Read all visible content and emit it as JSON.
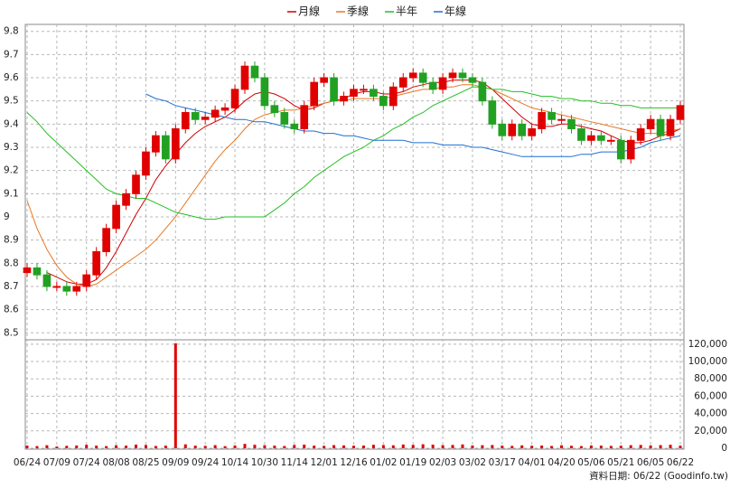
{
  "chart_data": {
    "type": "candlestick",
    "categories": [
      "06/24",
      null,
      null,
      "07/09",
      null,
      null,
      "07/24",
      null,
      null,
      "08/08",
      null,
      null,
      "08/25",
      null,
      null,
      "09/09",
      null,
      null,
      "09/24",
      null,
      null,
      "10/14",
      null,
      null,
      "10/30",
      null,
      null,
      "11/14",
      null,
      null,
      "12/01",
      null,
      null,
      "12/16",
      null,
      null,
      "01/02",
      null,
      null,
      "01/19",
      null,
      null,
      "02/03",
      null,
      null,
      "03/02",
      null,
      null,
      "03/17",
      null,
      null,
      "04/01",
      null,
      null,
      "04/20",
      null,
      null,
      "05/06",
      null,
      null,
      "05/21",
      null,
      null,
      "06/05",
      null,
      null,
      "06/22"
    ],
    "open": [
      8.76,
      8.78,
      8.75,
      8.7,
      8.7,
      8.68,
      8.7,
      8.75,
      8.85,
      8.95,
      9.05,
      9.1,
      9.18,
      9.28,
      9.35,
      9.25,
      9.38,
      9.45,
      9.42,
      9.43,
      9.46,
      9.47,
      9.55,
      9.65,
      9.6,
      9.48,
      9.45,
      9.4,
      9.38,
      9.48,
      9.58,
      9.6,
      9.5,
      9.52,
      9.55,
      9.55,
      9.52,
      9.48,
      9.56,
      9.6,
      9.62,
      9.58,
      9.55,
      9.6,
      9.62,
      9.6,
      9.58,
      9.5,
      9.4,
      9.35,
      9.4,
      9.35,
      9.38,
      9.45,
      9.42,
      9.42,
      9.38,
      9.33,
      9.35,
      9.33,
      9.33,
      9.25,
      9.33,
      9.38,
      9.42,
      9.35,
      9.42
    ],
    "high": [
      8.8,
      8.8,
      8.77,
      8.72,
      8.72,
      8.72,
      8.77,
      8.87,
      8.97,
      9.07,
      9.12,
      9.2,
      9.3,
      9.37,
      9.37,
      9.4,
      9.47,
      9.47,
      9.45,
      9.48,
      9.49,
      9.57,
      9.67,
      9.67,
      9.62,
      9.5,
      9.47,
      9.42,
      9.5,
      9.6,
      9.62,
      9.62,
      9.54,
      9.57,
      9.57,
      9.57,
      9.54,
      9.58,
      9.62,
      9.64,
      9.64,
      9.6,
      9.62,
      9.64,
      9.64,
      9.62,
      9.6,
      9.52,
      9.42,
      9.42,
      9.42,
      9.4,
      9.47,
      9.47,
      9.44,
      9.44,
      9.4,
      9.37,
      9.37,
      9.35,
      9.35,
      9.35,
      9.4,
      9.44,
      9.44,
      9.44,
      9.5
    ],
    "low": [
      8.74,
      8.73,
      8.68,
      8.68,
      8.66,
      8.66,
      8.68,
      8.73,
      8.83,
      8.93,
      9.03,
      9.08,
      9.16,
      9.26,
      9.23,
      9.23,
      9.36,
      9.4,
      9.4,
      9.41,
      9.44,
      9.45,
      9.53,
      9.58,
      9.46,
      9.43,
      9.38,
      9.36,
      9.36,
      9.46,
      9.56,
      9.48,
      9.48,
      9.5,
      9.53,
      9.5,
      9.46,
      9.46,
      9.54,
      9.58,
      9.56,
      9.53,
      9.53,
      9.58,
      9.58,
      9.56,
      9.48,
      9.38,
      9.33,
      9.33,
      9.33,
      9.33,
      9.36,
      9.4,
      9.4,
      9.36,
      9.31,
      9.31,
      9.31,
      9.31,
      9.23,
      9.23,
      9.31,
      9.36,
      9.33,
      9.33,
      9.4
    ],
    "close": [
      8.78,
      8.75,
      8.7,
      8.7,
      8.68,
      8.7,
      8.75,
      8.85,
      8.95,
      9.05,
      9.1,
      9.18,
      9.28,
      9.35,
      9.25,
      9.38,
      9.45,
      9.42,
      9.43,
      9.46,
      9.47,
      9.55,
      9.65,
      9.6,
      9.48,
      9.45,
      9.4,
      9.38,
      9.48,
      9.58,
      9.6,
      9.5,
      9.52,
      9.55,
      9.55,
      9.52,
      9.48,
      9.56,
      9.6,
      9.62,
      9.58,
      9.55,
      9.6,
      9.62,
      9.6,
      9.58,
      9.5,
      9.4,
      9.35,
      9.4,
      9.35,
      9.38,
      9.45,
      9.42,
      9.42,
      9.38,
      9.33,
      9.35,
      9.33,
      9.33,
      9.25,
      9.33,
      9.38,
      9.42,
      9.35,
      9.42,
      9.48
    ],
    "up_color": "#e00000",
    "down_color": "#22a022",
    "series": [
      {
        "name": "月線",
        "color": "#d00000",
        "values": [
          null,
          null,
          8.76,
          8.74,
          8.72,
          8.71,
          8.71,
          8.73,
          8.78,
          8.85,
          8.93,
          9.01,
          9.08,
          9.16,
          9.22,
          9.27,
          9.32,
          9.36,
          9.39,
          9.41,
          9.43,
          9.46,
          9.5,
          9.53,
          9.54,
          9.53,
          9.51,
          9.48,
          9.46,
          9.47,
          9.49,
          9.5,
          9.51,
          9.53,
          9.54,
          9.54,
          9.53,
          9.53,
          9.54,
          9.56,
          9.57,
          9.58,
          9.58,
          9.59,
          9.59,
          9.59,
          9.58,
          9.55,
          9.51,
          9.47,
          9.43,
          9.4,
          9.39,
          9.39,
          9.4,
          9.4,
          9.39,
          9.38,
          9.37,
          9.35,
          9.33,
          9.32,
          9.32,
          9.33,
          9.35,
          9.36,
          9.38
        ]
      },
      {
        "name": "季線",
        "color": "#e87722",
        "values": [
          9.07,
          8.95,
          8.86,
          8.79,
          8.74,
          8.71,
          8.7,
          8.71,
          8.74,
          8.77,
          8.8,
          8.83,
          8.86,
          8.9,
          8.95,
          9.0,
          9.06,
          9.12,
          9.18,
          9.24,
          9.29,
          9.33,
          9.38,
          9.42,
          9.44,
          9.45,
          9.46,
          9.46,
          9.47,
          9.48,
          9.49,
          9.5,
          9.5,
          9.51,
          9.51,
          9.51,
          9.51,
          9.52,
          9.53,
          9.54,
          9.55,
          9.55,
          9.56,
          9.56,
          9.57,
          9.57,
          9.56,
          9.55,
          9.53,
          9.51,
          9.49,
          9.47,
          9.46,
          9.45,
          9.44,
          9.43,
          9.42,
          9.41,
          9.4,
          9.39,
          9.38,
          9.37,
          9.36,
          9.36,
          9.36,
          9.37,
          9.38
        ]
      },
      {
        "name": "半年",
        "color": "#22c022",
        "values": [
          9.45,
          9.41,
          9.36,
          9.32,
          9.28,
          9.24,
          9.2,
          9.16,
          9.12,
          9.1,
          9.09,
          9.08,
          9.08,
          9.06,
          9.04,
          9.02,
          9.01,
          9.0,
          8.99,
          8.99,
          9.0,
          9.0,
          9.0,
          9.0,
          9.0,
          9.03,
          9.06,
          9.1,
          9.13,
          9.17,
          9.2,
          9.23,
          9.26,
          9.28,
          9.3,
          9.33,
          9.35,
          9.38,
          9.4,
          9.43,
          9.45,
          9.48,
          9.5,
          9.52,
          9.54,
          9.56,
          9.56,
          9.55,
          9.55,
          9.54,
          9.54,
          9.53,
          9.52,
          9.52,
          9.51,
          9.51,
          9.5,
          9.5,
          9.49,
          9.49,
          9.48,
          9.48,
          9.47,
          9.47,
          9.47,
          9.47,
          9.47
        ]
      },
      {
        "name": "年線",
        "color": "#1f6fd0",
        "values": [
          null,
          null,
          null,
          null,
          null,
          null,
          null,
          null,
          null,
          null,
          null,
          null,
          9.53,
          9.51,
          9.5,
          9.48,
          9.47,
          9.46,
          9.45,
          9.44,
          9.43,
          9.42,
          9.42,
          9.41,
          9.41,
          9.4,
          9.39,
          9.38,
          9.37,
          9.37,
          9.36,
          9.36,
          9.35,
          9.35,
          9.34,
          9.33,
          9.33,
          9.33,
          9.33,
          9.32,
          9.32,
          9.32,
          9.31,
          9.31,
          9.31,
          9.3,
          9.3,
          9.29,
          9.28,
          9.27,
          9.26,
          9.26,
          9.26,
          9.26,
          9.26,
          9.26,
          9.27,
          9.27,
          9.28,
          9.28,
          9.28,
          9.29,
          9.3,
          9.32,
          9.33,
          9.34,
          9.35
        ]
      }
    ],
    "ylim": [
      8.47,
      9.83
    ],
    "yticks": [
      8.5,
      8.6,
      8.7,
      8.8,
      8.9,
      9,
      9.1,
      9.2,
      9.3,
      9.4,
      9.5,
      9.6,
      9.7,
      9.8
    ],
    "grid": true,
    "volume": {
      "color": "#e00000",
      "values": [
        3000,
        2500,
        3500,
        2000,
        2800,
        3200,
        4000,
        3000,
        2500,
        3500,
        3000,
        4200,
        3800,
        2600,
        3000,
        121000,
        4500,
        3000,
        2800,
        3600,
        2400,
        3200,
        5000,
        4000,
        3500,
        3000,
        2600,
        3800,
        4200,
        3000,
        2800,
        3600,
        3300,
        2900,
        3100,
        4000,
        3700,
        3400,
        4300,
        3900,
        4600,
        4100,
        3600,
        3800,
        4400,
        3200,
        3500,
        3700,
        3000,
        2700,
        3300,
        2900,
        3100,
        2600,
        3400,
        2800,
        2500,
        3200,
        3000,
        2700,
        2900,
        3500,
        3800,
        3300,
        3600,
        4000,
        3000
      ],
      "ylim": [
        0,
        124000
      ],
      "yticks": [
        0,
        {
          "value": 20000,
          "label": "20,000"
        },
        {
          "value": 40000,
          "label": "40,000"
        },
        {
          "value": 60000,
          "label": "60,000"
        },
        {
          "value": 80000,
          "label": "80,000"
        },
        {
          "value": 100000,
          "label": "100,000"
        },
        {
          "value": 120000,
          "label": "120,000"
        }
      ]
    },
    "source": "資料日期: 06/22 (Goodinfo.tw)"
  }
}
